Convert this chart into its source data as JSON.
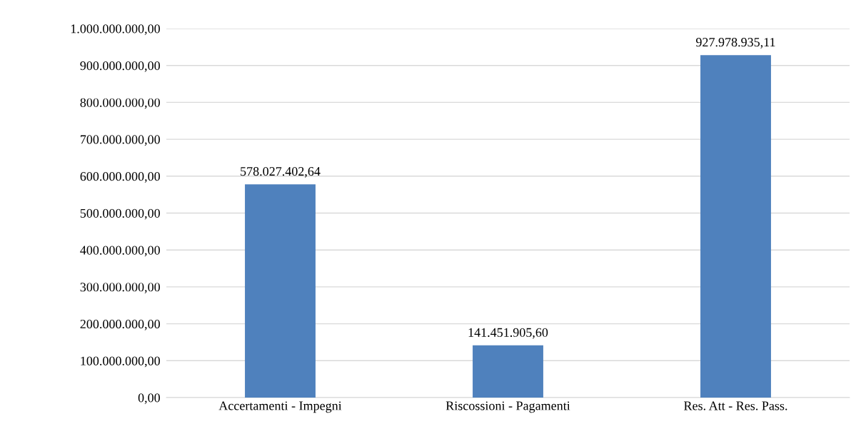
{
  "chart_data": {
    "type": "bar",
    "categories": [
      "Accertamenti - Impegni",
      "Riscossioni - Pagamenti",
      "Res. Att - Res. Pass."
    ],
    "values": [
      578027402.64,
      141451905.6,
      927978935.11
    ],
    "value_labels": [
      "578.027.402,64",
      "141.451.905,60",
      "927.978.935,11"
    ],
    "color": "#4f81bd",
    "ylim": [
      0,
      1000000000
    ],
    "yticks": [
      {
        "value": 0,
        "label": "0,00"
      },
      {
        "value": 100000000,
        "label": "100.000.000,00"
      },
      {
        "value": 200000000,
        "label": "200.000.000,00"
      },
      {
        "value": 300000000,
        "label": "300.000.000,00"
      },
      {
        "value": 400000000,
        "label": "400.000.000,00"
      },
      {
        "value": 500000000,
        "label": "500.000.000,00"
      },
      {
        "value": 600000000,
        "label": "600.000.000,00"
      },
      {
        "value": 700000000,
        "label": "700.000.000,00"
      },
      {
        "value": 800000000,
        "label": "800.000.000,00"
      },
      {
        "value": 900000000,
        "label": "900.000.000,00"
      },
      {
        "value": 1000000000,
        "label": "1.000.000.000,00"
      }
    ],
    "grid": "y",
    "legend": false
  }
}
